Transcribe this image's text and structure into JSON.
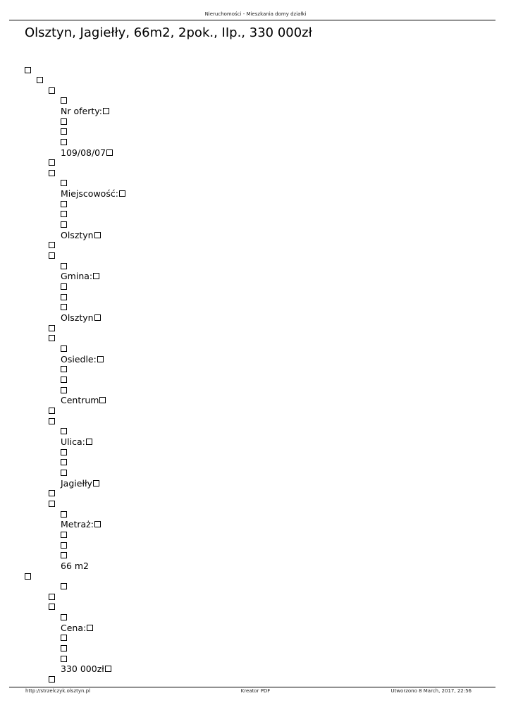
{
  "header": {
    "site_name": "Nieruchomości - Mieszkania domy działki"
  },
  "title": "Olsztyn, Jagiełły, 66m2, 2pok., IIp., 330 000zł",
  "fields": [
    {
      "label": "Nr oferty:",
      "value": "109/08/07"
    },
    {
      "label": "Miejscowość:",
      "value": "Olsztyn"
    },
    {
      "label": "Gmina:",
      "value": "Olsztyn"
    },
    {
      "label": "Osiedle:",
      "value": "Centrum"
    },
    {
      "label": "Ulica:",
      "value": "Jagiełły"
    },
    {
      "label": "Metraż:",
      "value": "66 m2"
    },
    {
      "label": "Cena:",
      "value": "330 000zł"
    }
  ],
  "footer": {
    "url": "http://strzelczyk.olsztyn.pl",
    "generator": "Kreator PDF",
    "created": "Utworzono 8 March, 2017, 22:56"
  }
}
